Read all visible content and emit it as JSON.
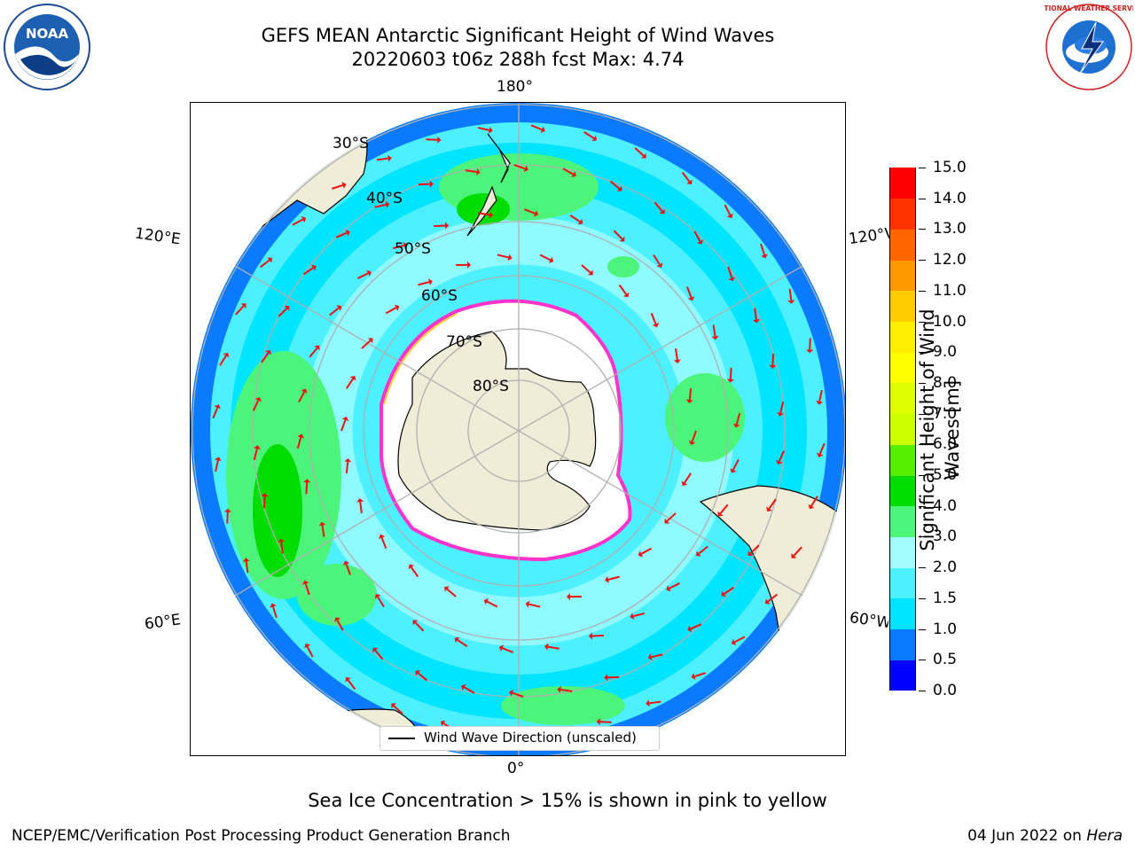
{
  "header": {
    "title_line1": "GEFS MEAN Antarctic Significant Height of Wind Waves",
    "title_line2": "20220603 t06z 288h fcst   Max: 4.74"
  },
  "map": {
    "projection": "south-polar-stereographic",
    "longitude_labels": {
      "top": "180°",
      "bottom": "0°",
      "left_upper": "120°E",
      "left_lower": "60°E",
      "right_upper": "120°W",
      "right_lower": "60°W"
    },
    "latitude_labels": [
      "30°S",
      "40°S",
      "50°S",
      "60°S",
      "70°S",
      "80°S"
    ],
    "legend_label": "Wind Wave Direction (unscaled)",
    "colors": {
      "land": "#efedd8",
      "ice_free": "#ffffff",
      "sea_ice_edge": "#ff33cc",
      "sea_ice_yellow": "#ffcc33",
      "arrow": "#ee1111",
      "grid": "#b0b0b0"
    }
  },
  "colorbar": {
    "label": "Significant Height of Wind Waves [m]",
    "ticks": [
      "0.0",
      "0.5",
      "1.0",
      "1.5",
      "2.0",
      "3.0",
      "4.0",
      "5.0",
      "6.0",
      "7.0",
      "8.0",
      "9.0",
      "10.0",
      "11.0",
      "12.0",
      "13.0",
      "14.0",
      "15.0"
    ],
    "colors": [
      "#0000ff",
      "#0a7aff",
      "#00e5ff",
      "#4cf0ff",
      "#a0fcff",
      "#4cf57a",
      "#00dd00",
      "#55ee00",
      "#ccff00",
      "#ddff00",
      "#ffff00",
      "#ffee00",
      "#ffcc00",
      "#ff9900",
      "#ff6600",
      "#ff3300",
      "#ff0000"
    ]
  },
  "footer": {
    "note": "Sea Ice Concentration > 15% is shown in pink to yellow",
    "credit": "NCEP/EMC/Verification Post Processing Product Generation Branch",
    "date_prefix": "04 Jun 2022 on ",
    "date_machine": "Hera"
  },
  "logos": {
    "noaa_text": "NOAA",
    "nws_text": "NATIONAL WEATHER SERVICE"
  }
}
